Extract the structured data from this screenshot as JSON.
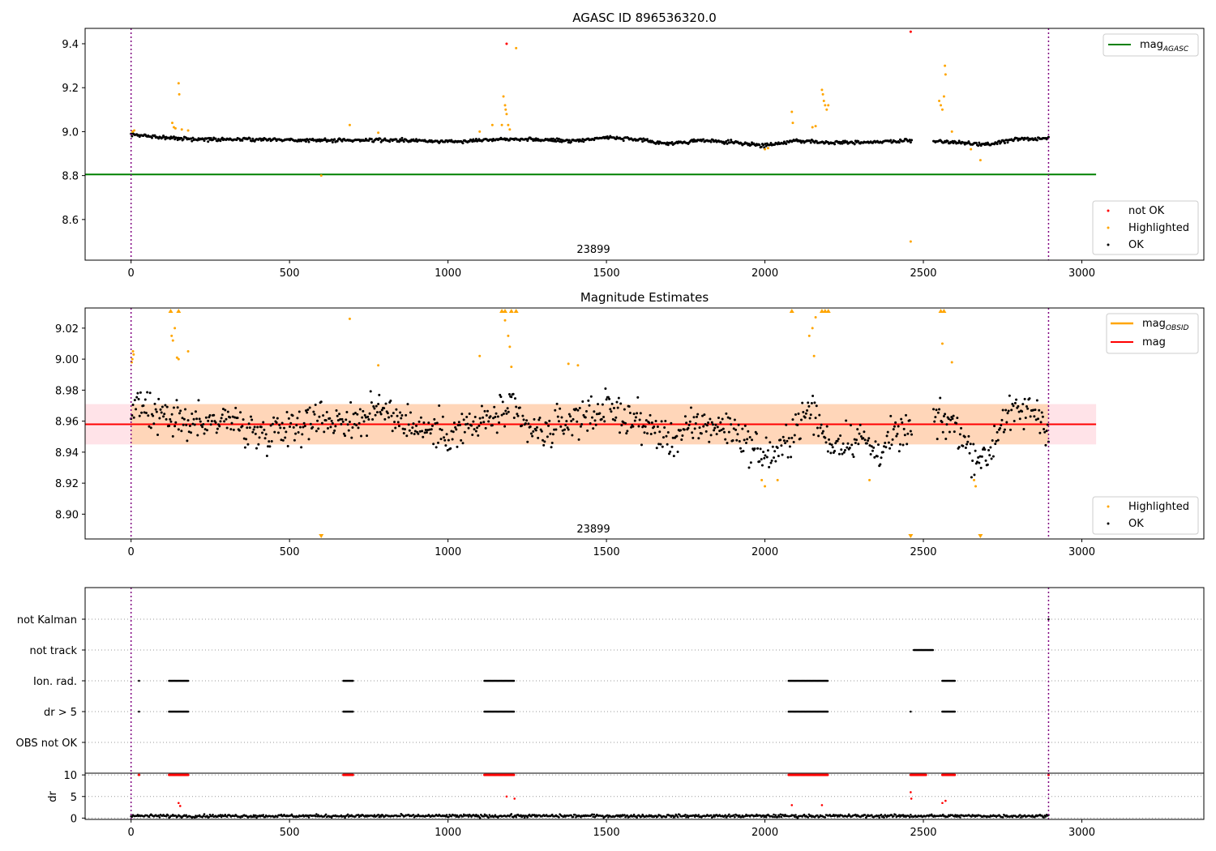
{
  "chart_data": [
    {
      "type": "scatter",
      "title": "AGASC ID 896536320.0",
      "xlabel": "",
      "ylabel": "",
      "xlim": [
        -145,
        3385
      ],
      "ylim": [
        8.415,
        9.47
      ],
      "xticks": [
        0,
        500,
        1000,
        1500,
        2000,
        2500,
        3000
      ],
      "yticks": [
        8.6,
        8.8,
        9.0,
        9.2,
        9.4
      ],
      "ytick_labels": [
        "8.6",
        "8.8",
        "9.0",
        "9.2",
        "9.4"
      ],
      "obsid_annotation": {
        "text": "23899",
        "x": 1445
      },
      "obsid_boundaries": [
        0,
        2895
      ],
      "reference_lines": [
        {
          "name": "mag_AGASC",
          "value": 8.805,
          "x_range": [
            -145,
            3045
          ],
          "color": "#008000"
        }
      ],
      "legend_lines": {
        "placement": "top-right",
        "entries": [
          {
            "label": "mag",
            "sub": "AGASC",
            "color": "#008000"
          }
        ]
      },
      "legend_points": {
        "placement": "bottom-right",
        "entries": [
          {
            "label": "not OK",
            "color": "#ff0000"
          },
          {
            "label": "Highlighted",
            "color": "#ffa500"
          },
          {
            "label": "OK",
            "color": "#000000"
          }
        ]
      },
      "series": [
        {
          "name": "OK",
          "color": "#000000",
          "baseline": [
            [
              0,
              8.985
            ],
            [
              200,
              8.965
            ],
            [
              400,
              8.965
            ],
            [
              600,
              8.96
            ],
            [
              800,
              8.962
            ],
            [
              1000,
              8.955
            ],
            [
              1200,
              8.968
            ],
            [
              1400,
              8.958
            ],
            [
              1500,
              8.975
            ],
            [
              1600,
              8.962
            ],
            [
              1700,
              8.945
            ],
            [
              1800,
              8.96
            ],
            [
              1950,
              8.945
            ],
            [
              2000,
              8.935
            ],
            [
              2100,
              8.96
            ],
            [
              2200,
              8.95
            ],
            [
              2400,
              8.955
            ],
            [
              2460,
              8.96
            ],
            [
              2560,
              8.955
            ],
            [
              2700,
              8.94
            ],
            [
              2800,
              8.968
            ],
            [
              2895,
              8.965
            ]
          ],
          "gaps": [
            [
              2465,
              2530
            ]
          ],
          "spread": 0.008
        },
        {
          "name": "Highlighted",
          "color": "#ffa500",
          "points": [
            [
              5,
              9.0
            ],
            [
              10,
              9.005
            ],
            [
              130,
              9.04
            ],
            [
              135,
              9.02
            ],
            [
              140,
              9.015
            ],
            [
              150,
              9.22
            ],
            [
              152,
              9.17
            ],
            [
              160,
              9.01
            ],
            [
              180,
              9.005
            ],
            [
              600,
              8.8
            ],
            [
              690,
              9.03
            ],
            [
              780,
              8.995
            ],
            [
              1100,
              9.0
            ],
            [
              1140,
              9.03
            ],
            [
              1170,
              9.03
            ],
            [
              1175,
              9.16
            ],
            [
              1180,
              9.12
            ],
            [
              1182,
              9.1
            ],
            [
              1185,
              9.08
            ],
            [
              1190,
              9.03
            ],
            [
              1195,
              9.01
            ],
            [
              1215,
              9.38
            ],
            [
              2000,
              8.92
            ],
            [
              2010,
              8.925
            ],
            [
              2085,
              9.09
            ],
            [
              2088,
              9.04
            ],
            [
              2150,
              9.02
            ],
            [
              2160,
              9.025
            ],
            [
              2180,
              9.19
            ],
            [
              2183,
              9.17
            ],
            [
              2186,
              9.14
            ],
            [
              2190,
              9.12
            ],
            [
              2195,
              9.1
            ],
            [
              2200,
              9.12
            ],
            [
              2460,
              8.5
            ],
            [
              2550,
              9.14
            ],
            [
              2555,
              9.12
            ],
            [
              2560,
              9.1
            ],
            [
              2565,
              9.16
            ],
            [
              2568,
              9.3
            ],
            [
              2570,
              9.26
            ],
            [
              2590,
              9.0
            ],
            [
              2650,
              8.92
            ],
            [
              2680,
              8.87
            ]
          ]
        },
        {
          "name": "not OK",
          "color": "#ff0000",
          "points": [
            [
              1185,
              9.4
            ],
            [
              2460,
              9.455
            ]
          ]
        }
      ]
    },
    {
      "type": "scatter",
      "title": "Magnitude Estimates",
      "xlabel": "",
      "ylabel": "",
      "xlim": [
        -145,
        3385
      ],
      "ylim": [
        8.884,
        9.033
      ],
      "xticks": [
        0,
        500,
        1000,
        1500,
        2000,
        2500,
        3000
      ],
      "yticks": [
        8.9,
        8.92,
        8.94,
        8.96,
        8.98,
        9.0,
        9.02
      ],
      "ytick_labels": [
        "8.90",
        "8.92",
        "8.94",
        "8.96",
        "8.98",
        "9.00",
        "9.02"
      ],
      "obsid_annotation": {
        "text": "23899",
        "x": 1445
      },
      "obsid_boundaries": [
        0,
        2895
      ],
      "reference_lines": [
        {
          "name": "mag",
          "value": 8.958,
          "x_range": [
            -145,
            3045
          ],
          "color": "#ff0000"
        }
      ],
      "band": {
        "x_range": [
          -145,
          3045
        ],
        "low": 8.945,
        "high": 8.971,
        "color": "#ffc0cb"
      },
      "obsid_band": {
        "x_range": [
          0,
          2895
        ],
        "low": 8.945,
        "high": 8.971,
        "color": "#ffa500"
      },
      "legend_lines": {
        "placement": "top-right",
        "entries": [
          {
            "label": "mag",
            "sub": "OBSID",
            "color": "#ffa500"
          },
          {
            "label": "mag",
            "sub": "",
            "color": "#ff0000"
          }
        ]
      },
      "legend_points": {
        "placement": "bottom-right",
        "entries": [
          {
            "label": "Highlighted",
            "color": "#ffa500"
          },
          {
            "label": "OK",
            "color": "#000000"
          }
        ]
      },
      "series": [
        {
          "name": "OK",
          "color": "#000000",
          "baseline": [
            [
              0,
              8.97
            ],
            [
              100,
              8.962
            ],
            [
              200,
              8.958
            ],
            [
              300,
              8.962
            ],
            [
              400,
              8.952
            ],
            [
              450,
              8.955
            ],
            [
              500,
              8.958
            ],
            [
              600,
              8.962
            ],
            [
              700,
              8.96
            ],
            [
              800,
              8.968
            ],
            [
              900,
              8.956
            ],
            [
              1000,
              8.952
            ],
            [
              1100,
              8.958
            ],
            [
              1200,
              8.968
            ],
            [
              1250,
              8.955
            ],
            [
              1300,
              8.952
            ],
            [
              1400,
              8.962
            ],
            [
              1500,
              8.968
            ],
            [
              1600,
              8.96
            ],
            [
              1700,
              8.948
            ],
            [
              1800,
              8.958
            ],
            [
              1900,
              8.955
            ],
            [
              1950,
              8.945
            ],
            [
              2000,
              8.938
            ],
            [
              2050,
              8.94
            ],
            [
              2100,
              8.958
            ],
            [
              2150,
              8.968
            ],
            [
              2200,
              8.945
            ],
            [
              2300,
              8.95
            ],
            [
              2350,
              8.94
            ],
            [
              2400,
              8.948
            ],
            [
              2460,
              8.955
            ],
            [
              2560,
              8.96
            ],
            [
              2600,
              8.958
            ],
            [
              2650,
              8.94
            ],
            [
              2700,
              8.935
            ],
            [
              2750,
              8.962
            ],
            [
              2850,
              8.968
            ],
            [
              2895,
              8.955
            ]
          ],
          "gaps": [
            [
              2465,
              2530
            ]
          ],
          "spread": 0.012
        },
        {
          "name": "Highlighted",
          "color": "#ffa500",
          "points": [
            [
              2,
              8.998
            ],
            [
              4,
              9.0
            ],
            [
              6,
              9.005
            ],
            [
              8,
              9.003
            ],
            [
              128,
              9.015
            ],
            [
              132,
              9.012
            ],
            [
              138,
              9.02
            ],
            [
              145,
              9.001
            ],
            [
              150,
              9.0
            ],
            [
              180,
              9.005
            ],
            [
              690,
              9.026
            ],
            [
              780,
              8.996
            ],
            [
              1100,
              9.002
            ],
            [
              1180,
              9.025
            ],
            [
              1190,
              9.015
            ],
            [
              1195,
              9.008
            ],
            [
              1200,
              8.995
            ],
            [
              1380,
              8.997
            ],
            [
              1410,
              8.996
            ],
            [
              1990,
              8.922
            ],
            [
              2000,
              8.918
            ],
            [
              2040,
              8.922
            ],
            [
              2140,
              9.015
            ],
            [
              2150,
              9.02
            ],
            [
              2155,
              9.002
            ],
            [
              2160,
              9.027
            ],
            [
              2330,
              8.922
            ],
            [
              2560,
              9.01
            ],
            [
              2590,
              8.998
            ],
            [
              2660,
              8.922
            ],
            [
              2665,
              8.918
            ]
          ],
          "clipped_top": [
            [
              125
            ],
            [
              150
            ],
            [
              1170
            ],
            [
              1180
            ],
            [
              1200
            ],
            [
              1215
            ],
            [
              2085
            ],
            [
              2180
            ],
            [
              2190
            ],
            [
              2200
            ],
            [
              2555
            ],
            [
              2565
            ]
          ],
          "clipped_bottom": [
            [
              600
            ],
            [
              2460
            ],
            [
              2680
            ]
          ]
        }
      ]
    },
    {
      "type": "scatter",
      "title": "",
      "xlabel": "",
      "ylabel": "",
      "xlim": [
        -145,
        3385
      ],
      "obsid_boundaries": [
        0,
        2895
      ],
      "categories": [
        "not Kalman",
        "not track",
        "Ion. rad.",
        "dr > 5",
        "OBS not OK"
      ],
      "flag_ranges": {
        "not Kalman": [
          [
            2895,
            2895
          ]
        ],
        "not track": [
          [
            2470,
            2530
          ]
        ],
        "Ion. rad.": [
          [
            25,
            25
          ],
          [
            120,
            180
          ],
          [
            670,
            700
          ],
          [
            1115,
            1210
          ],
          [
            2075,
            2200
          ],
          [
            2560,
            2600
          ]
        ],
        "dr > 5": [
          [
            25,
            25
          ],
          [
            120,
            180
          ],
          [
            670,
            700
          ],
          [
            1115,
            1210
          ],
          [
            2075,
            2200
          ],
          [
            2460,
            2460
          ],
          [
            2560,
            2600
          ]
        ],
        "OBS not OK": []
      }
    },
    {
      "type": "scatter",
      "title": "",
      "xlabel": "",
      "ylabel": "dr",
      "xlim": [
        -145,
        3385
      ],
      "ylim": [
        -0.3,
        10.4
      ],
      "yticks": [
        0,
        5,
        10
      ],
      "ytick_labels": [
        "0",
        "5",
        "10"
      ],
      "obsid_boundaries": [
        0,
        2895
      ],
      "series": [
        {
          "name": "dr",
          "color": "#000000",
          "baseline_level": 0.5,
          "spread": 0.35
        },
        {
          "name": "dr clipped",
          "color": "#ff0000",
          "ranges_at_10": [
            [
              25,
              25
            ],
            [
              120,
              180
            ],
            [
              670,
              700
            ],
            [
              1115,
              1210
            ],
            [
              2075,
              2200
            ],
            [
              2460,
              2510
            ],
            [
              2560,
              2600
            ],
            [
              2895,
              2895
            ]
          ],
          "points": [
            [
              150,
              3.5
            ],
            [
              155,
              2.8
            ],
            [
              1185,
              5.0
            ],
            [
              1210,
              4.5
            ],
            [
              2085,
              3.0
            ],
            [
              2180,
              3.0
            ],
            [
              2460,
              6.0
            ],
            [
              2462,
              4.5
            ],
            [
              2560,
              3.5
            ],
            [
              2570,
              4.0
            ]
          ]
        }
      ]
    }
  ]
}
